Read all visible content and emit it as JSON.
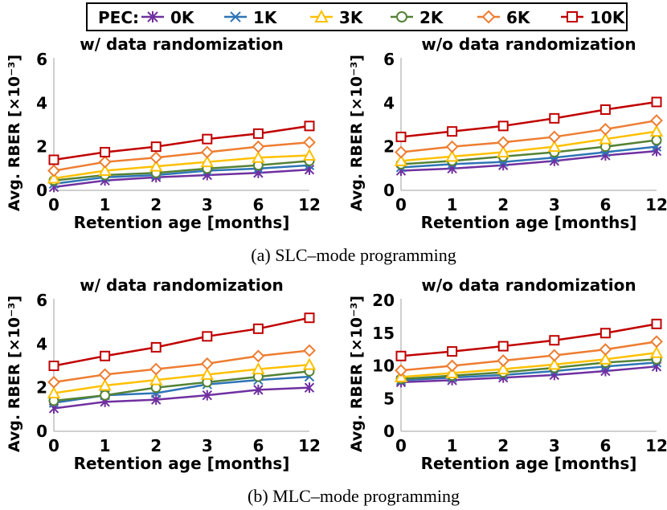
{
  "legend": {
    "label": "PEC:",
    "entries": [
      {
        "name": "0K",
        "color": "#7030A0",
        "marker": "asterisk"
      },
      {
        "name": "1K",
        "color": "#2E75B6",
        "marker": "x"
      },
      {
        "name": "3K",
        "color": "#FFC000",
        "marker": "triangle"
      },
      {
        "name": "2K",
        "color": "#548235",
        "marker": "circle"
      },
      {
        "name": "6K",
        "color": "#ED7D31",
        "marker": "diamond"
      },
      {
        "name": "10K",
        "color": "#C00000",
        "marker": "square"
      }
    ]
  },
  "captions": {
    "a": "(a) SLC–mode programming",
    "b": "(b) MLC–mode programming"
  },
  "chart_data": [
    {
      "type": "line",
      "title": "w/ data randomization",
      "xlabel": "Retention age [months]",
      "ylabel": "Avg. RBER [×10⁻³]",
      "categories": [
        "0",
        "1",
        "2",
        "3",
        "6",
        "12"
      ],
      "yticks": [
        "0",
        "2",
        "4",
        "6"
      ],
      "ylim": [
        0,
        6
      ],
      "grid": false,
      "series": [
        {
          "name": "0K",
          "values": [
            0.15,
            0.45,
            0.6,
            0.7,
            0.8,
            0.95
          ]
        },
        {
          "name": "1K",
          "values": [
            0.3,
            0.6,
            0.7,
            0.9,
            1.0,
            1.15
          ]
        },
        {
          "name": "2K",
          "values": [
            0.45,
            0.7,
            0.8,
            1.0,
            1.15,
            1.35
          ]
        },
        {
          "name": "3K",
          "values": [
            0.55,
            0.9,
            1.1,
            1.3,
            1.5,
            1.6
          ]
        },
        {
          "name": "6K",
          "values": [
            0.9,
            1.3,
            1.5,
            1.75,
            2.0,
            2.2
          ]
        },
        {
          "name": "10K",
          "values": [
            1.4,
            1.75,
            2.0,
            2.35,
            2.6,
            2.95
          ]
        }
      ]
    },
    {
      "type": "line",
      "title": "w/o data randomization",
      "xlabel": "Retention age [months]",
      "ylabel": "Avg. RBER [×10⁻³]",
      "categories": [
        "0",
        "1",
        "2",
        "3",
        "6",
        "12"
      ],
      "yticks": [
        "0",
        "2",
        "4",
        "6"
      ],
      "ylim": [
        0,
        6
      ],
      "grid": false,
      "series": [
        {
          "name": "0K",
          "values": [
            0.9,
            1.0,
            1.15,
            1.35,
            1.6,
            1.8
          ]
        },
        {
          "name": "1K",
          "values": [
            1.05,
            1.2,
            1.3,
            1.5,
            1.75,
            2.0
          ]
        },
        {
          "name": "2K",
          "values": [
            1.2,
            1.35,
            1.55,
            1.75,
            2.0,
            2.3
          ]
        },
        {
          "name": "3K",
          "values": [
            1.35,
            1.55,
            1.75,
            2.0,
            2.35,
            2.7
          ]
        },
        {
          "name": "6K",
          "values": [
            1.75,
            2.0,
            2.2,
            2.45,
            2.8,
            3.2
          ]
        },
        {
          "name": "10K",
          "values": [
            2.45,
            2.7,
            2.95,
            3.3,
            3.7,
            4.05
          ]
        }
      ]
    },
    {
      "type": "line",
      "title": "w/ data randomization",
      "xlabel": "Retention age [months]",
      "ylabel": "Avg. RBER [×10⁻³]",
      "categories": [
        "0",
        "1",
        "2",
        "3",
        "6",
        "12"
      ],
      "yticks": [
        "0",
        "2",
        "4",
        "6"
      ],
      "ylim": [
        0,
        6
      ],
      "grid": false,
      "series": [
        {
          "name": "0K",
          "values": [
            1.05,
            1.35,
            1.45,
            1.65,
            1.9,
            2.0
          ]
        },
        {
          "name": "1K",
          "values": [
            1.3,
            1.65,
            1.75,
            2.15,
            2.35,
            2.5
          ]
        },
        {
          "name": "2K",
          "values": [
            1.4,
            1.65,
            2.0,
            2.25,
            2.5,
            2.75
          ]
        },
        {
          "name": "3K",
          "values": [
            1.75,
            2.1,
            2.35,
            2.6,
            2.85,
            3.05
          ]
        },
        {
          "name": "6K",
          "values": [
            2.25,
            2.6,
            2.85,
            3.1,
            3.45,
            3.7
          ]
        },
        {
          "name": "10K",
          "values": [
            3.0,
            3.45,
            3.85,
            4.35,
            4.7,
            5.2
          ]
        }
      ]
    },
    {
      "type": "line",
      "title": "w/o data randomization",
      "xlabel": "Retention age [months]",
      "ylabel": "Avg. RBER [×10⁻³]",
      "categories": [
        "0",
        "1",
        "2",
        "3",
        "6",
        "12"
      ],
      "yticks": [
        "0",
        "5",
        "10",
        "15",
        "20"
      ],
      "ylim": [
        0,
        20
      ],
      "grid": false,
      "series": [
        {
          "name": "0K",
          "values": [
            7.5,
            7.8,
            8.2,
            8.6,
            9.2,
            9.9
          ]
        },
        {
          "name": "1K",
          "values": [
            7.8,
            8.2,
            8.6,
            9.2,
            9.9,
            10.5
          ]
        },
        {
          "name": "2K",
          "values": [
            8.0,
            8.5,
            9.0,
            9.7,
            10.5,
            11.0
          ]
        },
        {
          "name": "3K",
          "values": [
            8.3,
            8.9,
            9.5,
            10.2,
            11.0,
            12.0
          ]
        },
        {
          "name": "6K",
          "values": [
            9.3,
            10.0,
            10.8,
            11.6,
            12.5,
            13.7
          ]
        },
        {
          "name": "10K",
          "values": [
            11.5,
            12.2,
            13.0,
            13.9,
            15.0,
            16.4
          ]
        }
      ]
    }
  ]
}
